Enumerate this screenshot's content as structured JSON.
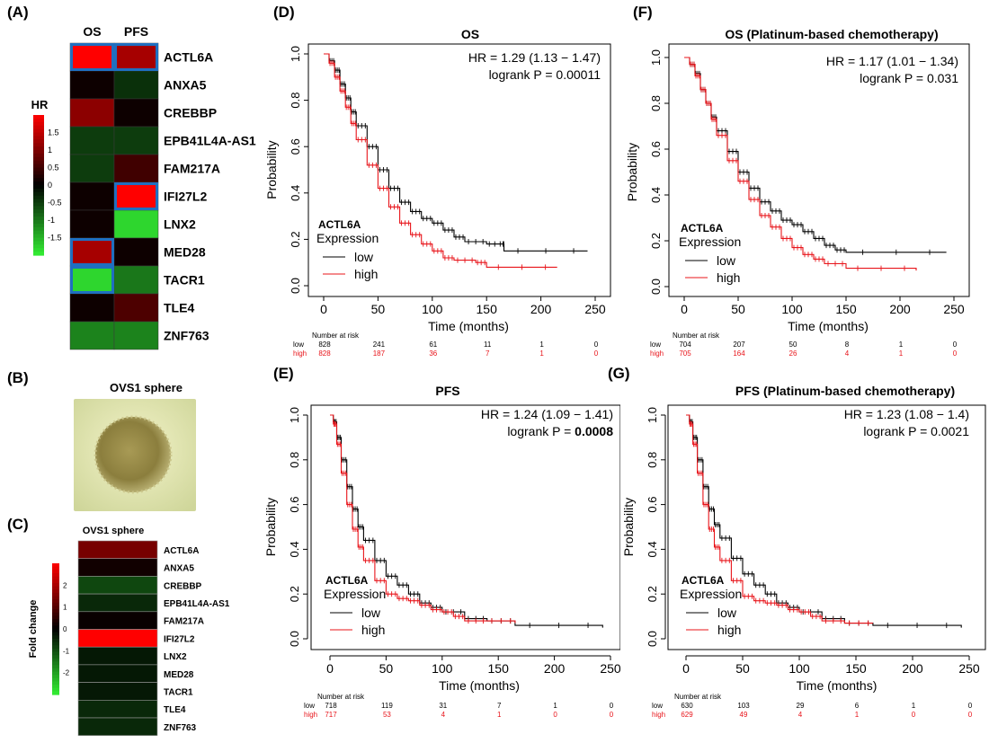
{
  "panel_labels": {
    "a": "(A)",
    "b": "(B)",
    "c": "(C)",
    "d": "(D)",
    "e": "(E)",
    "f": "(F)",
    "g": "(G)"
  },
  "chart_data": [
    {
      "id": "A",
      "type": "heatmap",
      "columns": [
        "OS",
        "PFS"
      ],
      "rows": [
        "ACTL6A",
        "ANXA5",
        "CREBBP",
        "EPB41L4A-AS1",
        "FAM217A",
        "IFI27L2",
        "LNX2",
        "MED28",
        "TACR1",
        "TLE4",
        "ZNF763"
      ],
      "values": [
        [
          2.0,
          1.3
        ],
        [
          0.1,
          -0.4
        ],
        [
          1.1,
          0.1
        ],
        [
          -0.5,
          -0.5
        ],
        [
          -0.5,
          0.5
        ],
        [
          0.1,
          2.0
        ],
        [
          0.1,
          -1.8
        ],
        [
          1.3,
          0.1
        ],
        [
          -1.8,
          -1.0
        ],
        [
          0.1,
          0.6
        ],
        [
          -1.1,
          -1.1
        ]
      ],
      "highlighted": [
        [
          0,
          0
        ],
        [
          0,
          1
        ],
        [
          5,
          1
        ],
        [
          7,
          0
        ],
        [
          8,
          0
        ]
      ],
      "legend": {
        "title": "HR",
        "ticks": [
          "1.5",
          "1",
          "0.5",
          "0",
          "-0.5",
          "-1",
          "-1.5"
        ],
        "range": [
          -2,
          2
        ]
      },
      "colors": {
        "high": "#ff0000",
        "mid": "#000000",
        "low": "#33ee33",
        "highlight": "#1f6fc0"
      }
    },
    {
      "id": "B",
      "type": "image",
      "title": "OVS1 sphere"
    },
    {
      "id": "C",
      "type": "heatmap",
      "title": "OVS1 sphere",
      "rows": [
        "ACTL6A",
        "ANXA5",
        "CREBBP",
        "EPB41L4A-AS1",
        "FAM217A",
        "IFI27L2",
        "LNX2",
        "MED28",
        "TACR1",
        "TLE4",
        "ZNF763"
      ],
      "values": [
        1.4,
        0.2,
        -0.9,
        -0.5,
        0.1,
        3.0,
        -0.3,
        -0.3,
        -0.3,
        -0.5,
        -0.5
      ],
      "legend": {
        "title": "Fold change",
        "ticks": [
          "2",
          "1",
          "0",
          "-1",
          "-2"
        ],
        "range": [
          -3,
          3
        ]
      }
    },
    {
      "id": "D",
      "type": "line",
      "title": "OS",
      "hr_text": "HR = 1.29 (1.13 − 1.47)",
      "p_label": "logrank P = ",
      "p_value": "0.00011",
      "p_bold": false,
      "xlabel": "Time (months)",
      "ylabel": "Probability",
      "xlim": [
        0,
        250
      ],
      "ylim": [
        0,
        1
      ],
      "xticks": [
        "0",
        "50",
        "100",
        "150",
        "200",
        "250"
      ],
      "yticks": [
        "0.0",
        "0.2",
        "0.4",
        "0.6",
        "0.8",
        "1.0"
      ],
      "legend": {
        "title": "ACTL6A",
        "subtitle": "Expression",
        "items": [
          "low",
          "high"
        ]
      },
      "series": [
        {
          "name": "low",
          "color": "#000000",
          "x": [
            0,
            5,
            10,
            15,
            20,
            25,
            30,
            40,
            50,
            60,
            70,
            80,
            90,
            100,
            110,
            120,
            130,
            150,
            165,
            166,
            243
          ],
          "y": [
            1.0,
            0.97,
            0.93,
            0.87,
            0.81,
            0.75,
            0.69,
            0.6,
            0.5,
            0.42,
            0.36,
            0.32,
            0.29,
            0.27,
            0.24,
            0.21,
            0.19,
            0.18,
            0.18,
            0.15,
            0.15
          ]
        },
        {
          "name": "high",
          "color": "#e8141a",
          "x": [
            0,
            5,
            10,
            15,
            20,
            25,
            30,
            40,
            50,
            60,
            70,
            80,
            90,
            100,
            110,
            120,
            140,
            150,
            215
          ],
          "y": [
            1.0,
            0.96,
            0.9,
            0.84,
            0.77,
            0.7,
            0.63,
            0.52,
            0.42,
            0.34,
            0.27,
            0.22,
            0.18,
            0.15,
            0.12,
            0.11,
            0.1,
            0.08,
            0.08
          ]
        }
      ],
      "risk": {
        "title": "Number at risk",
        "rows": [
          {
            "label": "low",
            "values": [
              "828",
              "241",
              "61",
              "11",
              "1",
              "0"
            ]
          },
          {
            "label": "high",
            "values": [
              "828",
              "187",
              "36",
              "7",
              "1",
              "0"
            ]
          }
        ]
      }
    },
    {
      "id": "E",
      "type": "line",
      "title": "PFS",
      "hr_text": "HR = 1.24 (1.09 − 1.41)",
      "p_label": "logrank P = ",
      "p_value": "0.0008",
      "p_bold": true,
      "xlabel": "Time (months)",
      "ylabel": "Probability",
      "xlim": [
        0,
        250
      ],
      "ylim": [
        0,
        1
      ],
      "xticks": [
        "0",
        "50",
        "100",
        "150",
        "200",
        "250"
      ],
      "yticks": [
        "0.0",
        "0.2",
        "0.4",
        "0.6",
        "0.8",
        "1.0"
      ],
      "legend": {
        "title": "ACTL6A",
        "subtitle": "Expression",
        "items": [
          "low",
          "high"
        ]
      },
      "series": [
        {
          "name": "low",
          "color": "#000000",
          "x": [
            0,
            3,
            6,
            10,
            15,
            20,
            25,
            30,
            40,
            50,
            60,
            70,
            80,
            90,
            100,
            120,
            140,
            165,
            243
          ],
          "y": [
            1.0,
            0.97,
            0.9,
            0.8,
            0.68,
            0.58,
            0.5,
            0.44,
            0.35,
            0.28,
            0.24,
            0.2,
            0.16,
            0.14,
            0.12,
            0.09,
            0.08,
            0.06,
            0.05
          ]
        },
        {
          "name": "high",
          "color": "#e8141a",
          "x": [
            0,
            3,
            6,
            10,
            15,
            20,
            25,
            30,
            40,
            50,
            60,
            70,
            80,
            90,
            100,
            110,
            120,
            140,
            165
          ],
          "y": [
            1.0,
            0.96,
            0.87,
            0.74,
            0.6,
            0.49,
            0.41,
            0.35,
            0.26,
            0.2,
            0.18,
            0.17,
            0.15,
            0.13,
            0.12,
            0.1,
            0.08,
            0.08,
            0.07
          ]
        }
      ],
      "risk": {
        "title": "Number at risk",
        "rows": [
          {
            "label": "low",
            "values": [
              "718",
              "119",
              "31",
              "7",
              "1",
              "0"
            ]
          },
          {
            "label": "high",
            "values": [
              "717",
              "53",
              "4",
              "1",
              "0",
              "0"
            ]
          }
        ]
      }
    },
    {
      "id": "F",
      "type": "line",
      "title": "OS (Platinum-based chemotherapy)",
      "hr_text": "HR = 1.17 (1.01 − 1.34)",
      "p_label": "logrank P = ",
      "p_value": "0.031",
      "p_bold": false,
      "xlabel": "Time (months)",
      "ylabel": "Probability",
      "xlim": [
        0,
        250
      ],
      "ylim": [
        0,
        1
      ],
      "xticks": [
        "0",
        "50",
        "100",
        "150",
        "200",
        "250"
      ],
      "yticks": [
        "0.0",
        "0.2",
        "0.4",
        "0.6",
        "0.8",
        "1.0"
      ],
      "legend": {
        "title": "ACTL6A",
        "subtitle": "Expression",
        "items": [
          "low",
          "high"
        ]
      },
      "series": [
        {
          "name": "low",
          "color": "#000000",
          "x": [
            0,
            5,
            10,
            15,
            20,
            25,
            30,
            40,
            50,
            60,
            70,
            80,
            90,
            100,
            110,
            120,
            130,
            140,
            150,
            243
          ],
          "y": [
            1.0,
            0.97,
            0.93,
            0.86,
            0.8,
            0.74,
            0.68,
            0.59,
            0.5,
            0.43,
            0.37,
            0.33,
            0.29,
            0.27,
            0.24,
            0.21,
            0.18,
            0.16,
            0.15,
            0.15
          ]
        },
        {
          "name": "high",
          "color": "#e8141a",
          "x": [
            0,
            5,
            10,
            15,
            20,
            25,
            30,
            40,
            50,
            60,
            70,
            80,
            90,
            100,
            110,
            120,
            130,
            150,
            215
          ],
          "y": [
            1.0,
            0.97,
            0.92,
            0.86,
            0.8,
            0.73,
            0.66,
            0.55,
            0.46,
            0.38,
            0.31,
            0.26,
            0.21,
            0.17,
            0.14,
            0.12,
            0.1,
            0.08,
            0.07
          ]
        }
      ],
      "risk": {
        "title": "Number at risk",
        "rows": [
          {
            "label": "low",
            "values": [
              "704",
              "207",
              "50",
              "8",
              "1",
              "0"
            ]
          },
          {
            "label": "high",
            "values": [
              "705",
              "164",
              "26",
              "4",
              "1",
              "0"
            ]
          }
        ]
      }
    },
    {
      "id": "G",
      "type": "line",
      "title": "PFS (Platinum-based chemotherapy)",
      "hr_text": "HR = 1.23 (1.08 − 1.4)",
      "p_label": "logrank P = ",
      "p_value": "0.0021",
      "p_bold": false,
      "xlabel": "Time (months)",
      "ylabel": "Probability",
      "xlim": [
        0,
        250
      ],
      "ylim": [
        0,
        1
      ],
      "xticks": [
        "0",
        "50",
        "100",
        "150",
        "200",
        "250"
      ],
      "yticks": [
        "0.0",
        "0.2",
        "0.4",
        "0.6",
        "0.8",
        "1.0"
      ],
      "legend": {
        "title": "ACTL6A",
        "subtitle": "Expression",
        "items": [
          "low",
          "high"
        ]
      },
      "series": [
        {
          "name": "low",
          "color": "#000000",
          "x": [
            0,
            3,
            6,
            10,
            15,
            20,
            25,
            30,
            40,
            50,
            60,
            70,
            80,
            90,
            100,
            120,
            140,
            165,
            243
          ],
          "y": [
            1.0,
            0.97,
            0.9,
            0.8,
            0.68,
            0.58,
            0.51,
            0.45,
            0.36,
            0.29,
            0.24,
            0.2,
            0.16,
            0.14,
            0.12,
            0.09,
            0.07,
            0.06,
            0.05
          ]
        },
        {
          "name": "high",
          "color": "#e8141a",
          "x": [
            0,
            3,
            6,
            10,
            15,
            20,
            25,
            30,
            40,
            50,
            60,
            70,
            80,
            90,
            100,
            110,
            120,
            140,
            165
          ],
          "y": [
            1.0,
            0.96,
            0.87,
            0.74,
            0.6,
            0.49,
            0.41,
            0.35,
            0.26,
            0.19,
            0.17,
            0.16,
            0.15,
            0.13,
            0.12,
            0.1,
            0.08,
            0.07,
            0.07
          ]
        }
      ],
      "risk": {
        "title": "Number at risk",
        "rows": [
          {
            "label": "low",
            "values": [
              "630",
              "103",
              "29",
              "6",
              "1",
              "0"
            ]
          },
          {
            "label": "high",
            "values": [
              "629",
              "49",
              "4",
              "1",
              "0",
              "0"
            ]
          }
        ]
      }
    }
  ]
}
